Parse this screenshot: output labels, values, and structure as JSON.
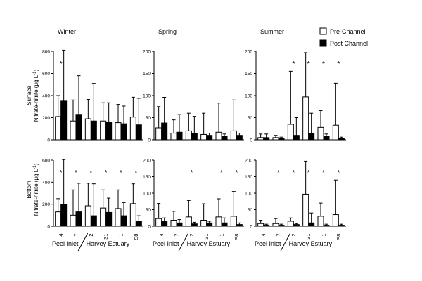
{
  "chart_data": {
    "type": "bar",
    "legend": {
      "placement": "top-right",
      "items": [
        {
          "key": "pre",
          "label": "Pre-Channel",
          "fill": "#ffffff"
        },
        {
          "key": "post",
          "label": "Post Channel",
          "fill": "#000000"
        }
      ]
    },
    "sites": [
      "4",
      "7",
      "2",
      "31",
      "1",
      "S8"
    ],
    "groups": [
      {
        "label": "Peel Inlet",
        "sites": [
          "4",
          "7"
        ]
      },
      {
        "label": "Harvey Estuary",
        "sites": [
          "2",
          "31",
          "1",
          "S8"
        ]
      }
    ],
    "y_axis_label": "Nitrate-nitrite (μg L",
    "y_axis_label_sup": "-1",
    "y_axis_label_close": ")",
    "row_labels": [
      "Surface",
      "Bottom"
    ],
    "column_titles": [
      "Winter",
      "Spring",
      "Summer"
    ],
    "panels": [
      {
        "id": "winter-surface",
        "row": 0,
        "col": 0,
        "ylim": [
          0,
          800
        ],
        "ticks": [
          0,
          200,
          400,
          600,
          800
        ],
        "pre": [
          210,
          170,
          190,
          170,
          155,
          205
        ],
        "pre_err": [
          190,
          190,
          175,
          165,
          165,
          180
        ],
        "post": [
          350,
          230,
          170,
          160,
          145,
          135
        ],
        "post_err": [
          460,
          350,
          340,
          175,
          160,
          240
        ],
        "stars": [
          true,
          false,
          false,
          false,
          false,
          false
        ]
      },
      {
        "id": "spring-surface",
        "row": 0,
        "col": 1,
        "ylim": [
          0,
          200
        ],
        "ticks": [
          0,
          50,
          100,
          150,
          200
        ],
        "pre": [
          27,
          15,
          20,
          12,
          17,
          20
        ],
        "pre_err": [
          48,
          30,
          40,
          48,
          66,
          70
        ],
        "post": [
          38,
          17,
          15,
          10,
          8,
          10
        ],
        "post_err": [
          58,
          40,
          38,
          5,
          5,
          5
        ],
        "stars": [
          false,
          false,
          false,
          false,
          false,
          false
        ]
      },
      {
        "id": "summer-surface",
        "row": 0,
        "col": 2,
        "ylim": [
          0,
          200
        ],
        "ticks": [
          0,
          50,
          100,
          150,
          200
        ],
        "pre": [
          5,
          5,
          35,
          97,
          28,
          33
        ],
        "pre_err": [
          8,
          5,
          120,
          100,
          38,
          95
        ],
        "post": [
          5,
          3,
          10,
          15,
          8,
          3
        ],
        "post_err": [
          8,
          3,
          40,
          45,
          5,
          3
        ],
        "stars": [
          false,
          false,
          true,
          true,
          true,
          true
        ]
      },
      {
        "id": "winter-bottom",
        "row": 1,
        "col": 0,
        "ylim": [
          0,
          600
        ],
        "ticks": [
          0,
          200,
          400,
          600
        ],
        "pre": [
          130,
          100,
          185,
          165,
          160,
          205
        ],
        "pre_err": [
          120,
          230,
          205,
          165,
          170,
          180
        ],
        "post": [
          200,
          130,
          95,
          125,
          95,
          45
        ],
        "post_err": [
          405,
          260,
          290,
          130,
          120,
          50
        ],
        "stars": [
          true,
          true,
          true,
          true,
          true,
          true
        ]
      },
      {
        "id": "spring-bottom",
        "row": 1,
        "col": 1,
        "ylim": [
          0,
          200
        ],
        "ticks": [
          0,
          50,
          100,
          150,
          200
        ],
        "pre": [
          23,
          18,
          28,
          18,
          28,
          30
        ],
        "pre_err": [
          46,
          27,
          50,
          50,
          55,
          75
        ],
        "post": [
          15,
          10,
          7,
          10,
          10,
          5
        ],
        "post_err": [
          10,
          10,
          5,
          5,
          15,
          5
        ],
        "stars": [
          false,
          false,
          true,
          false,
          true,
          true
        ]
      },
      {
        "id": "summer-bottom",
        "row": 1,
        "col": 2,
        "ylim": [
          0,
          200
        ],
        "ticks": [
          0,
          50,
          100,
          150,
          200
        ],
        "pre": [
          8,
          8,
          15,
          97,
          30,
          35
        ],
        "pre_err": [
          10,
          15,
          10,
          100,
          40,
          105
        ],
        "post": [
          3,
          3,
          5,
          10,
          3,
          3
        ],
        "post_err": [
          3,
          3,
          3,
          30,
          3,
          3
        ],
        "stars": [
          false,
          true,
          true,
          true,
          true,
          true
        ]
      }
    ]
  }
}
